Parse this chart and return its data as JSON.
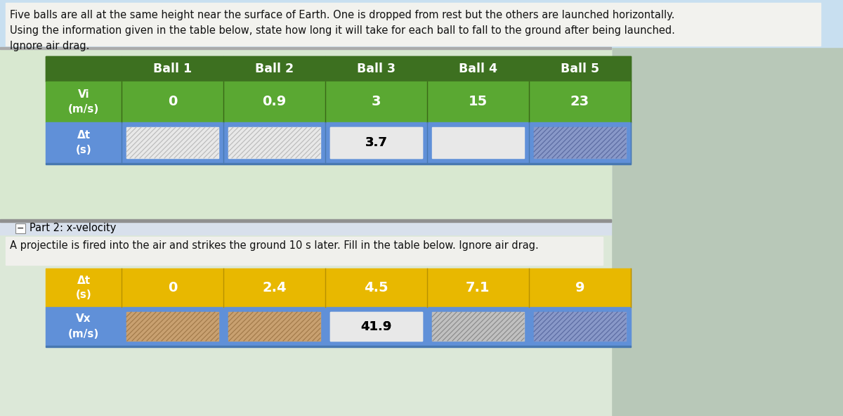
{
  "bg_color": "#c8c8c8",
  "top_panel_color": "#d8e8f8",
  "header_bg": "#c8dff0",
  "white_panel": "#f5f5f0",
  "part2_bar_color": "#d0d8e8",
  "text_dark": "#111111",
  "header_text_lines": [
    "Five balls are all at the same height near the surface of Earth. One is dropped from rest but the others are launched horizontally.",
    "Using the information given in the table below, state how long it will take for each ball to fall to the ground after being launched.",
    "Ignore air drag."
  ],
  "part2_text": "A projectile is fired into the air and strikes the ground 10 s later. Fill in the table below. Ignore air drag.",
  "table1": {
    "header_bg": "#3d7020",
    "row1_bg": "#5aa832",
    "row2_bg": "#6090d8",
    "col_headers": [
      "Ball 1",
      "Ball 2",
      "Ball 3",
      "Ball 4",
      "Ball 5"
    ],
    "row1_label": "Vi\n(m/s)",
    "row1_values": [
      "0",
      "0.9",
      "3",
      "15",
      "23"
    ],
    "row2_label": "Δt\n(s)",
    "row2_answer": "3.7",
    "row2_answer_col": 2,
    "box_styles": [
      "hatched_white",
      "hatched_white",
      "plain_white",
      "plain_white",
      "hatched_blue"
    ]
  },
  "table2": {
    "row1_bg": "#e8b800",
    "row2_bg": "#6090d8",
    "row1_label": "Δt\n(s)",
    "row1_values": [
      "0",
      "2.4",
      "4.5",
      "7.1",
      "9"
    ],
    "row2_label": "Vx\n(m/s)",
    "row2_answer": "41.9",
    "row2_answer_col": 2,
    "box_styles": [
      "hatched_brown",
      "hatched_brown",
      "plain_white",
      "hatched_gray",
      "hatched_blue"
    ]
  }
}
